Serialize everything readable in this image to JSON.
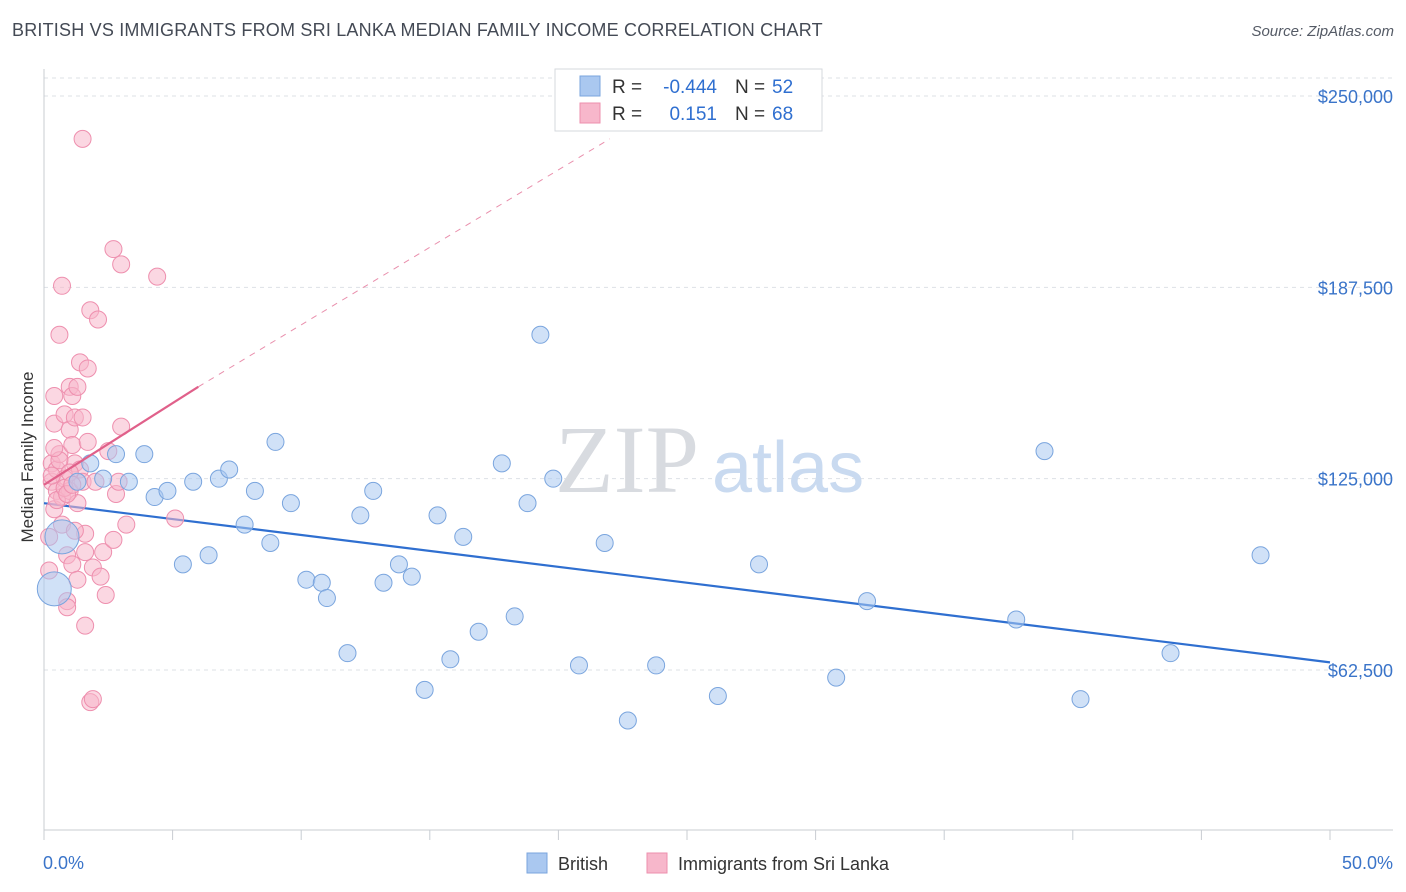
{
  "header": {
    "title": "BRITISH VS IMMIGRANTS FROM SRI LANKA MEDIAN FAMILY INCOME CORRELATION CHART",
    "source": "Source: ZipAtlas.com"
  },
  "watermark": {
    "zip": "ZIP",
    "atlas": "atlas"
  },
  "legend_box": {
    "rows": [
      {
        "r_label": "R =",
        "r_value": "-0.444",
        "n_label": "N =",
        "n_value": "52"
      },
      {
        "r_label": "R =",
        "r_value": "0.151",
        "n_label": "N =",
        "n_value": "68"
      }
    ]
  },
  "bottom_legend": {
    "series1": "British",
    "series2": "Immigrants from Sri Lanka"
  },
  "colors": {
    "british_fill": "#aac8f0",
    "british_stroke": "#7aa5de",
    "british_line": "#2f6fd0",
    "srilanka_fill": "#f7b7cb",
    "srilanka_stroke": "#ee8fae",
    "srilanka_line": "#e0608a",
    "grid": "#dde1e6",
    "axis": "#c8ccd2"
  },
  "chart_data": {
    "type": "scatter",
    "title": "BRITISH VS IMMIGRANTS FROM SRI LANKA MEDIAN FAMILY INCOME CORRELATION CHART",
    "xlabel": "",
    "ylabel": "Median Family Income",
    "xlim": [
      0,
      50
    ],
    "ylim": [
      20000,
      260000
    ],
    "x_tick_labels": [
      "0.0%",
      "50.0%"
    ],
    "y_ticks": [
      62500,
      125000,
      187500,
      250000
    ],
    "y_tick_labels": [
      "$62,500",
      "$125,000",
      "$187,500",
      "$250,000"
    ],
    "grid": true,
    "legend_position": "top-center",
    "series": [
      {
        "name": "British",
        "points": [
          {
            "x": 0.7,
            "y": 106000,
            "big": true
          },
          {
            "x": 0.4,
            "y": 89000,
            "big": true
          },
          {
            "x": 1.3,
            "y": 124000
          },
          {
            "x": 1.8,
            "y": 130000
          },
          {
            "x": 2.3,
            "y": 125000
          },
          {
            "x": 2.8,
            "y": 133000
          },
          {
            "x": 3.3,
            "y": 124000
          },
          {
            "x": 3.9,
            "y": 133000
          },
          {
            "x": 4.3,
            "y": 119000
          },
          {
            "x": 4.8,
            "y": 121000
          },
          {
            "x": 5.4,
            "y": 97000
          },
          {
            "x": 5.8,
            "y": 124000
          },
          {
            "x": 6.4,
            "y": 100000
          },
          {
            "x": 6.8,
            "y": 125000
          },
          {
            "x": 7.2,
            "y": 128000
          },
          {
            "x": 7.8,
            "y": 110000
          },
          {
            "x": 8.2,
            "y": 121000
          },
          {
            "x": 8.8,
            "y": 104000
          },
          {
            "x": 9.0,
            "y": 137000
          },
          {
            "x": 9.6,
            "y": 117000
          },
          {
            "x": 10.2,
            "y": 92000
          },
          {
            "x": 10.8,
            "y": 91000
          },
          {
            "x": 11.0,
            "y": 86000
          },
          {
            "x": 11.8,
            "y": 68000
          },
          {
            "x": 12.3,
            "y": 113000
          },
          {
            "x": 12.8,
            "y": 121000
          },
          {
            "x": 13.2,
            "y": 91000
          },
          {
            "x": 13.8,
            "y": 97000
          },
          {
            "x": 14.3,
            "y": 93000
          },
          {
            "x": 14.8,
            "y": 56000
          },
          {
            "x": 15.3,
            "y": 113000
          },
          {
            "x": 15.8,
            "y": 66000
          },
          {
            "x": 16.3,
            "y": 106000
          },
          {
            "x": 16.9,
            "y": 75000
          },
          {
            "x": 17.8,
            "y": 130000
          },
          {
            "x": 18.3,
            "y": 80000
          },
          {
            "x": 18.8,
            "y": 117000
          },
          {
            "x": 19.3,
            "y": 172000
          },
          {
            "x": 19.8,
            "y": 125000
          },
          {
            "x": 20.8,
            "y": 64000
          },
          {
            "x": 21.8,
            "y": 104000
          },
          {
            "x": 22.7,
            "y": 46000
          },
          {
            "x": 23.8,
            "y": 64000
          },
          {
            "x": 26.2,
            "y": 54000
          },
          {
            "x": 27.8,
            "y": 97000
          },
          {
            "x": 30.8,
            "y": 60000
          },
          {
            "x": 32.0,
            "y": 85000
          },
          {
            "x": 37.8,
            "y": 79000
          },
          {
            "x": 38.9,
            "y": 134000
          },
          {
            "x": 40.3,
            "y": 53000
          },
          {
            "x": 43.8,
            "y": 68000
          },
          {
            "x": 47.3,
            "y": 100000
          }
        ],
        "trend": {
          "x0": 0,
          "y0": 117000,
          "x1": 50,
          "y1": 65000
        }
      },
      {
        "name": "Immigrants from Sri Lanka",
        "points": [
          {
            "x": 0.2,
            "y": 106000
          },
          {
            "x": 0.2,
            "y": 95000
          },
          {
            "x": 0.3,
            "y": 130000
          },
          {
            "x": 0.3,
            "y": 124000
          },
          {
            "x": 0.4,
            "y": 115000
          },
          {
            "x": 0.4,
            "y": 143000
          },
          {
            "x": 0.4,
            "y": 152000
          },
          {
            "x": 0.5,
            "y": 121000
          },
          {
            "x": 0.5,
            "y": 128000
          },
          {
            "x": 0.6,
            "y": 172000
          },
          {
            "x": 0.6,
            "y": 133000
          },
          {
            "x": 0.7,
            "y": 188000
          },
          {
            "x": 0.7,
            "y": 119000
          },
          {
            "x": 0.7,
            "y": 110000
          },
          {
            "x": 0.8,
            "y": 125000
          },
          {
            "x": 0.8,
            "y": 146000
          },
          {
            "x": 0.9,
            "y": 85000
          },
          {
            "x": 0.9,
            "y": 83000
          },
          {
            "x": 0.9,
            "y": 100000
          },
          {
            "x": 1.0,
            "y": 155000
          },
          {
            "x": 1.0,
            "y": 141000
          },
          {
            "x": 1.0,
            "y": 121000
          },
          {
            "x": 1.1,
            "y": 136000
          },
          {
            "x": 1.1,
            "y": 152000
          },
          {
            "x": 1.1,
            "y": 97000
          },
          {
            "x": 1.2,
            "y": 145000
          },
          {
            "x": 1.2,
            "y": 130000
          },
          {
            "x": 1.3,
            "y": 117000
          },
          {
            "x": 1.3,
            "y": 155000
          },
          {
            "x": 1.3,
            "y": 92000
          },
          {
            "x": 1.4,
            "y": 163000
          },
          {
            "x": 1.4,
            "y": 128000
          },
          {
            "x": 1.5,
            "y": 236000
          },
          {
            "x": 1.5,
            "y": 145000
          },
          {
            "x": 1.5,
            "y": 124000
          },
          {
            "x": 1.6,
            "y": 77000
          },
          {
            "x": 1.6,
            "y": 107000
          },
          {
            "x": 1.6,
            "y": 101000
          },
          {
            "x": 1.7,
            "y": 161000
          },
          {
            "x": 1.7,
            "y": 137000
          },
          {
            "x": 1.8,
            "y": 52000
          },
          {
            "x": 1.8,
            "y": 180000
          },
          {
            "x": 1.9,
            "y": 53000
          },
          {
            "x": 1.9,
            "y": 96000
          },
          {
            "x": 2.0,
            "y": 124000
          },
          {
            "x": 2.1,
            "y": 177000
          },
          {
            "x": 2.2,
            "y": 93000
          },
          {
            "x": 2.3,
            "y": 101000
          },
          {
            "x": 2.4,
            "y": 87000
          },
          {
            "x": 2.5,
            "y": 134000
          },
          {
            "x": 2.7,
            "y": 105000
          },
          {
            "x": 2.8,
            "y": 120000
          },
          {
            "x": 2.9,
            "y": 124000
          },
          {
            "x": 3.0,
            "y": 142000
          },
          {
            "x": 3.2,
            "y": 110000
          },
          {
            "x": 0.3,
            "y": 126000
          },
          {
            "x": 0.5,
            "y": 118000
          },
          {
            "x": 0.6,
            "y": 131000
          },
          {
            "x": 0.8,
            "y": 122000
          },
          {
            "x": 0.9,
            "y": 120000
          },
          {
            "x": 1.0,
            "y": 127000
          },
          {
            "x": 1.1,
            "y": 123000
          },
          {
            "x": 2.7,
            "y": 200000
          },
          {
            "x": 3.0,
            "y": 195000
          },
          {
            "x": 4.4,
            "y": 191000
          },
          {
            "x": 5.1,
            "y": 112000
          },
          {
            "x": 0.4,
            "y": 135000
          },
          {
            "x": 1.2,
            "y": 108000
          }
        ],
        "trend": {
          "x0": 0,
          "y0": 123000,
          "x1": 6.0,
          "y1": 155000,
          "dashed_to_x": 22.0,
          "dashed_to_y": 236000
        }
      }
    ]
  }
}
